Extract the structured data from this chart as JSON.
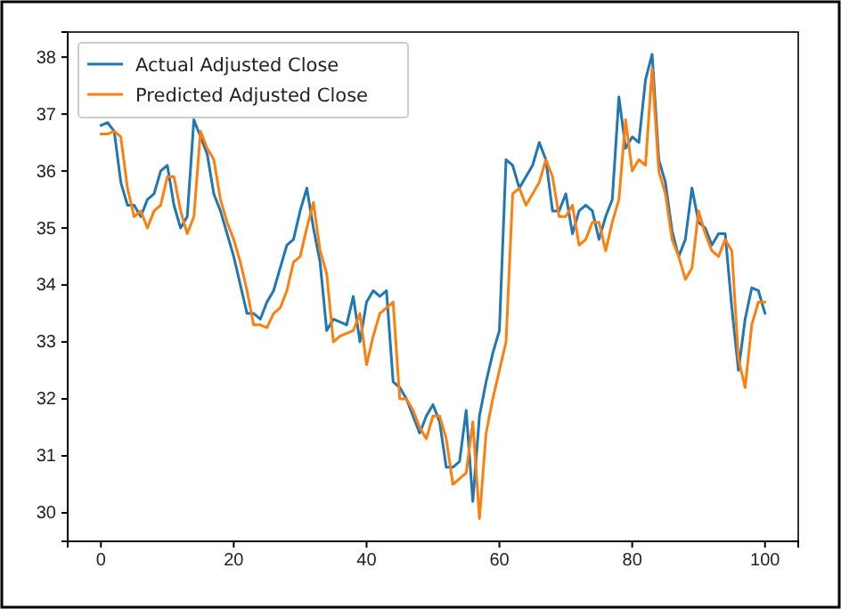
{
  "chart_data": {
    "type": "line",
    "x": [
      0,
      1,
      2,
      3,
      4,
      5,
      6,
      7,
      8,
      9,
      10,
      11,
      12,
      13,
      14,
      15,
      16,
      17,
      18,
      19,
      20,
      21,
      22,
      23,
      24,
      25,
      26,
      27,
      28,
      29,
      30,
      31,
      32,
      33,
      34,
      35,
      36,
      37,
      38,
      39,
      40,
      41,
      42,
      43,
      44,
      45,
      46,
      47,
      48,
      49,
      50,
      51,
      52,
      53,
      54,
      55,
      56,
      57,
      58,
      59,
      60,
      61,
      62,
      63,
      64,
      65,
      66,
      67,
      68,
      69,
      70,
      71,
      72,
      73,
      74,
      75,
      76,
      77,
      78,
      79,
      80,
      81,
      82,
      83,
      84,
      85,
      86,
      87,
      88,
      89,
      90,
      91,
      92,
      93,
      94,
      95,
      96,
      97,
      98,
      99,
      100
    ],
    "series": [
      {
        "name": "Actual Adjusted Close",
        "color": "#1f77b4",
        "values": [
          36.8,
          36.85,
          36.7,
          35.8,
          35.4,
          35.4,
          35.2,
          35.5,
          35.6,
          36.0,
          36.1,
          35.4,
          35.0,
          35.2,
          36.9,
          36.6,
          36.3,
          35.6,
          35.3,
          34.9,
          34.5,
          34.0,
          33.5,
          33.5,
          33.4,
          33.7,
          33.9,
          34.3,
          34.7,
          34.8,
          35.3,
          35.7,
          35.0,
          34.4,
          33.2,
          33.4,
          33.35,
          33.3,
          33.8,
          33.0,
          33.7,
          33.9,
          33.8,
          33.9,
          32.3,
          32.2,
          32.0,
          31.7,
          31.4,
          31.7,
          31.9,
          31.6,
          30.8,
          30.8,
          30.9,
          31.8,
          30.2,
          31.7,
          32.3,
          32.8,
          33.2,
          36.2,
          36.1,
          35.7,
          35.9,
          36.1,
          36.5,
          36.2,
          35.3,
          35.3,
          35.6,
          34.9,
          35.3,
          35.4,
          35.3,
          34.8,
          35.2,
          35.5,
          37.3,
          36.4,
          36.6,
          36.5,
          37.6,
          38.05,
          36.2,
          35.8,
          34.95,
          34.5,
          34.8,
          35.7,
          35.1,
          35.0,
          34.7,
          34.9,
          34.9,
          33.6,
          32.5,
          33.4,
          33.95,
          33.9,
          33.5
        ]
      },
      {
        "name": "Predicted Adjusted Close",
        "color": "#ff7f0e",
        "values": [
          36.65,
          36.65,
          36.7,
          36.6,
          35.7,
          35.2,
          35.3,
          35.0,
          35.3,
          35.4,
          35.9,
          35.9,
          35.3,
          34.9,
          35.2,
          36.7,
          36.4,
          36.2,
          35.5,
          35.1,
          34.8,
          34.4,
          33.9,
          33.3,
          33.3,
          33.25,
          33.5,
          33.6,
          33.9,
          34.4,
          34.5,
          35.0,
          35.45,
          34.6,
          34.2,
          33.0,
          33.1,
          33.15,
          33.2,
          33.5,
          32.6,
          33.1,
          33.5,
          33.6,
          33.7,
          32.0,
          32.0,
          31.8,
          31.5,
          31.3,
          31.7,
          31.7,
          31.3,
          30.5,
          30.6,
          30.7,
          31.6,
          29.9,
          31.4,
          32.0,
          32.5,
          33.0,
          35.6,
          35.7,
          35.4,
          35.6,
          35.8,
          36.2,
          35.9,
          35.2,
          35.2,
          35.4,
          34.7,
          34.8,
          35.1,
          35.1,
          34.6,
          35.1,
          35.5,
          36.9,
          36.0,
          36.2,
          36.1,
          37.8,
          36.0,
          35.6,
          34.8,
          34.5,
          34.1,
          34.3,
          35.3,
          34.9,
          34.6,
          34.5,
          34.8,
          34.6,
          32.7,
          32.2,
          33.3,
          33.7,
          33.7
        ]
      }
    ],
    "xlim": [
      -5,
      105
    ],
    "xticks": [
      0,
      20,
      40,
      60,
      80,
      100
    ],
    "ylim": [
      29.5,
      38.44
    ],
    "yticks": [
      30,
      31,
      32,
      33,
      34,
      35,
      36,
      37,
      38
    ],
    "legend": "top left"
  }
}
